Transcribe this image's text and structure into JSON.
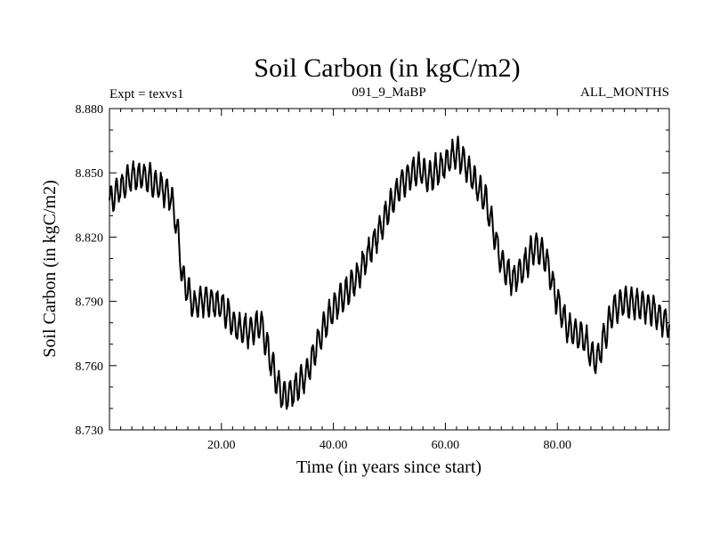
{
  "chart_data": {
    "type": "line",
    "title": "Soil Carbon (in kgC/m2)",
    "subtitle_left": "Expt = texvs1",
    "subtitle_center": "091_9_MaBP",
    "subtitle_right": "ALL_MONTHS",
    "xlabel": "Time (in years since start)",
    "ylabel": "Soil Carbon (in kgC/m2)",
    "xlim": [
      0,
      100
    ],
    "ylim": [
      8.73,
      8.88
    ],
    "xticks": [
      20,
      40,
      60,
      80
    ],
    "xtick_labels": [
      "20.00",
      "40.00",
      "60.00",
      "80.00"
    ],
    "yticks": [
      8.73,
      8.76,
      8.79,
      8.82,
      8.85,
      8.88
    ],
    "ytick_labels": [
      "8.730",
      "8.760",
      "8.790",
      "8.820",
      "8.850",
      "8.880"
    ],
    "grid": false,
    "series": [
      {
        "name": "Soil Carbon",
        "trend_x": [
          0,
          2,
          4,
          6,
          8,
          10,
          11,
          12,
          13,
          15,
          17,
          20,
          23,
          25,
          27,
          28,
          30,
          31,
          33,
          35,
          38,
          40,
          44,
          48,
          52,
          55,
          57,
          60,
          62,
          64,
          66,
          67,
          68,
          70,
          72,
          74,
          76,
          78,
          80,
          82,
          85,
          86,
          87,
          88,
          90,
          92,
          95,
          97,
          100
        ],
        "trend_y": [
          8.837,
          8.843,
          8.848,
          8.849,
          8.845,
          8.842,
          8.838,
          8.826,
          8.802,
          8.788,
          8.791,
          8.788,
          8.777,
          8.776,
          8.78,
          8.77,
          8.752,
          8.745,
          8.748,
          8.755,
          8.776,
          8.787,
          8.8,
          8.822,
          8.845,
          8.852,
          8.848,
          8.854,
          8.86,
          8.852,
          8.842,
          8.838,
          8.83,
          8.808,
          8.8,
          8.806,
          8.816,
          8.81,
          8.79,
          8.777,
          8.772,
          8.765,
          8.762,
          8.77,
          8.786,
          8.79,
          8.788,
          8.786,
          8.779
        ],
        "seasonal_amplitude": 0.0065,
        "cycle_years": 1
      }
    ]
  }
}
